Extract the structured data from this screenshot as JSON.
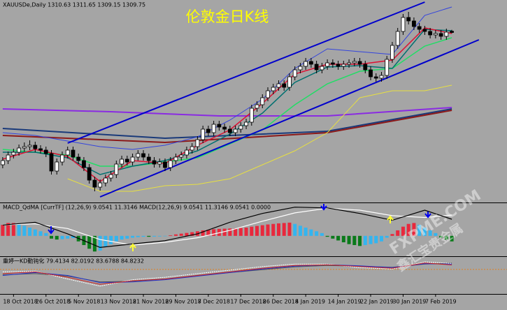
{
  "chart_data": {
    "type": "candlestick",
    "title": "伦敦金日K线",
    "header": "XAUUSDe,Daily  1310.63 1311.65 1309.15 1309.75",
    "watermark": [
      "FXPME.COM",
      "鑫汇宝贵金属"
    ],
    "xlim": [
      -0.5,
      93.2
    ],
    "xticks": [
      {
        "value": 2,
        "label": "18 Oct 2018"
      },
      {
        "value": 8,
        "label": "26 Oct 2018"
      },
      {
        "value": 14,
        "label": "5 Nov 2018"
      },
      {
        "value": 20,
        "label": "13 Nov 2018"
      },
      {
        "value": 26,
        "label": "21 Nov 2018"
      },
      {
        "value": 32,
        "label": "29 Nov 2018"
      },
      {
        "value": 38,
        "label": "7 Dec 2018"
      },
      {
        "value": 44,
        "label": "17 Dec 2018"
      },
      {
        "value": 50,
        "label": "26 Dec 2018"
      },
      {
        "value": 56,
        "label": "4 Jan 2019"
      },
      {
        "value": 62,
        "label": "14 Jan 2019"
      },
      {
        "value": 68,
        "label": "22 Jan 2019"
      },
      {
        "value": 74,
        "label": "30 Jan 2019"
      },
      {
        "value": 80,
        "label": "7 Feb 2019"
      }
    ],
    "ylim": [
      1188,
      1333
    ],
    "up_color": "#ffffff",
    "down_color": "#000000",
    "open": [
      1215,
      1218,
      1222,
      1224,
      1227,
      1228,
      1229,
      1226.5,
      1225.5,
      1223,
      1210.5,
      1217,
      1222,
      1225.5,
      1220.5,
      1218,
      1213,
      1204,
      1199,
      1202,
      1205.5,
      1208,
      1215.5,
      1219,
      1217,
      1220.5,
      1223,
      1220.5,
      1218,
      1215.5,
      1217,
      1213,
      1218,
      1220.5,
      1222,
      1225.5,
      1228,
      1233,
      1240.5,
      1238,
      1244,
      1242,
      1240.5,
      1238,
      1240.5,
      1243,
      1245.5,
      1255.5,
      1258,
      1263,
      1268,
      1270.5,
      1273,
      1270.5,
      1278,
      1283,
      1285.5,
      1289,
      1287,
      1283,
      1285.5,
      1288,
      1287,
      1285.5,
      1287,
      1288,
      1289,
      1287,
      1283,
      1278,
      1277,
      1279,
      1290.5,
      1300.5,
      1310.5,
      1320.5,
      1318,
      1314,
      1312,
      1310.5,
      1308,
      1309,
      1307,
      1310.63
    ],
    "high": [
      1220.5,
      1224.5,
      1226.5,
      1229.5,
      1231,
      1232.5,
      1231.5,
      1229,
      1228,
      1225.5,
      1219.5,
      1224.5,
      1228,
      1228,
      1223,
      1220.5,
      1215.5,
      1206.5,
      1204.5,
      1208,
      1210.5,
      1218,
      1221.5,
      1221.5,
      1223,
      1225.5,
      1225.5,
      1223,
      1220.5,
      1219.5,
      1219.5,
      1220.5,
      1223,
      1224.5,
      1228,
      1230.5,
      1235.5,
      1243,
      1243,
      1246.5,
      1246.5,
      1244.5,
      1243,
      1243,
      1245.5,
      1248,
      1258,
      1260.5,
      1265.5,
      1270.5,
      1273,
      1275.5,
      1275.5,
      1280.5,
      1285.5,
      1288,
      1291.5,
      1291.5,
      1289.5,
      1288,
      1290.5,
      1290.5,
      1289.5,
      1289.5,
      1290.5,
      1291.5,
      1291.5,
      1289.5,
      1285.5,
      1280.5,
      1281.5,
      1293,
      1303,
      1313,
      1323,
      1324.5,
      1320.5,
      1316.5,
      1314.5,
      1313,
      1311.5,
      1311.5,
      1312.5,
      1311.65
    ],
    "low": [
      1212.5,
      1215.5,
      1219.5,
      1221.5,
      1224.5,
      1225.5,
      1224,
      1223,
      1220.5,
      1208,
      1208,
      1214.5,
      1219.5,
      1218,
      1215.5,
      1210.5,
      1201.5,
      1196,
      1196.5,
      1199.5,
      1203,
      1205.5,
      1213,
      1214.5,
      1214.5,
      1218,
      1218,
      1215.5,
      1213,
      1213,
      1210.5,
      1210.5,
      1215.5,
      1218,
      1219.5,
      1223,
      1225.5,
      1230.5,
      1235.5,
      1235.5,
      1239.5,
      1238,
      1235.5,
      1235.5,
      1238,
      1240.5,
      1243,
      1253,
      1255.5,
      1260.5,
      1265.5,
      1268,
      1268,
      1268,
      1275.5,
      1280.5,
      1283,
      1284.5,
      1280.5,
      1280.5,
      1283,
      1284.5,
      1283,
      1283,
      1284.5,
      1285.5,
      1284.5,
      1280.5,
      1275.5,
      1274.5,
      1274.5,
      1276.5,
      1288,
      1298,
      1308,
      1315.5,
      1311.5,
      1309.5,
      1308,
      1305.5,
      1305.5,
      1304.5,
      1304.5,
      1309.15
    ],
    "close": [
      1218,
      1222,
      1224,
      1227,
      1228,
      1229,
      1226.5,
      1225.5,
      1223,
      1210.5,
      1217,
      1222,
      1225.5,
      1220.5,
      1218,
      1213,
      1204,
      1199,
      1202,
      1205.5,
      1208,
      1215.5,
      1219,
      1217,
      1220.5,
      1223,
      1220.5,
      1218,
      1215.5,
      1217,
      1213,
      1218,
      1220.5,
      1222,
      1225.5,
      1228,
      1233,
      1240.5,
      1238,
      1244,
      1242,
      1240.5,
      1238,
      1240.5,
      1243,
      1245.5,
      1255.5,
      1258,
      1263,
      1268,
      1270.5,
      1273,
      1270.5,
      1278,
      1283,
      1285.5,
      1289,
      1287,
      1283,
      1285.5,
      1288,
      1287,
      1285.5,
      1287,
      1288,
      1289,
      1287,
      1283,
      1278,
      1277,
      1279,
      1290.5,
      1300.5,
      1310.5,
      1320.5,
      1318,
      1314,
      1312,
      1310.5,
      1308,
      1309,
      1307,
      1310,
      1309.75
    ],
    "overlays": [
      {
        "color": "#8a2be2",
        "width": 2,
        "x": [
          0,
          20,
          40,
          60,
          83
        ],
        "values": [
          1255,
          1253,
          1250,
          1250,
          1256
        ]
      },
      {
        "color": "#1a3a7a",
        "width": 2,
        "x": [
          0,
          30,
          60,
          83
        ],
        "values": [
          1241,
          1234,
          1239,
          1255
        ]
      },
      {
        "color": "#8b1a1a",
        "width": 2,
        "x": [
          0,
          30,
          60,
          83
        ],
        "values": [
          1236,
          1231,
          1238,
          1254
        ]
      },
      {
        "color": "#3344dd",
        "width": 1,
        "x": [
          0,
          6,
          12,
          18,
          24,
          30,
          36,
          42,
          48,
          54,
          60,
          66,
          72,
          78,
          83
        ],
        "values": [
          1238,
          1236,
          1232,
          1228,
          1226,
          1229,
          1235,
          1247,
          1262,
          1284,
          1298,
          1296,
          1294,
          1322,
          1328
        ]
      },
      {
        "color": "#e8e040",
        "width": 1,
        "x": [
          12,
          18,
          24,
          30,
          36,
          42,
          48,
          54,
          60,
          66,
          72,
          78,
          83
        ],
        "values": [
          1205,
          1196,
          1196,
          1200,
          1201,
          1205,
          1215,
          1225,
          1238,
          1263,
          1268,
          1268,
          1272
        ]
      },
      {
        "color": "#22dd66",
        "width": 1.5,
        "x": [
          0,
          6,
          12,
          18,
          24,
          30,
          36,
          42,
          48,
          54,
          60,
          66,
          72,
          78,
          83
        ],
        "values": [
          1226,
          1224,
          1222,
          1214,
          1214,
          1217,
          1220,
          1230,
          1240,
          1258,
          1273,
          1282,
          1284,
          1300,
          1306
        ]
      },
      {
        "color": "#007070",
        "width": 1.5,
        "x": [
          0,
          6,
          12,
          18,
          24,
          30,
          36,
          42,
          48,
          54,
          60,
          66,
          72,
          78,
          83
        ],
        "values": [
          1224,
          1224,
          1220,
          1208,
          1214,
          1218,
          1225,
          1237,
          1252,
          1274,
          1285,
          1286,
          1284,
          1312,
          1311
        ]
      },
      {
        "color": "#dd1133",
        "width": 1.5,
        "x": [
          0,
          6,
          12,
          18,
          24,
          30,
          36,
          42,
          48,
          54,
          60,
          66,
          72,
          78,
          83
        ],
        "values": [
          1219,
          1226,
          1221,
          1203,
          1218,
          1216,
          1229,
          1240,
          1259,
          1280,
          1287,
          1287,
          1290,
          1313,
          1309
        ]
      }
    ],
    "channel_lines": [
      {
        "color": "#0000cc",
        "x": [
          12,
          78
        ],
        "values": [
          1230.5,
          1331.5
        ]
      },
      {
        "color": "#0000cc",
        "x": [
          18,
          88
        ],
        "values": [
          1192,
          1304.5
        ]
      }
    ],
    "macd": {
      "label": "MACD_QdMA [CurrTF] (12,26,9) 9.0541 11.3146  MACD(12,26,9) 9.0541 11.3146 9.0541 0.0000",
      "ylim": [
        -10.7,
        17.4
      ],
      "histogram": [
        6,
        7,
        7,
        6.5,
        5.5,
        4.5,
        3.5,
        2.5,
        1.5,
        -1.5,
        -2,
        -1.8,
        -1.5,
        -1.2,
        -3,
        -5,
        -7,
        -8.5,
        -8,
        -6,
        -4.5,
        -3,
        -2,
        -1.5,
        -1,
        -0.7,
        -0.5,
        -0.5,
        -0.4,
        -0.3,
        -0.2,
        0.3,
        0.8,
        1.2,
        1.6,
        2,
        2.5,
        3,
        3.3,
        3.6,
        3.8,
        3.9,
        4,
        4.1,
        4.3,
        4.5,
        5,
        5.4,
        5.8,
        6.2,
        6.5,
        6.8,
        7,
        7.2,
        6.5,
        5.5,
        4.5,
        3.5,
        2.5,
        1.5,
        -0.5,
        -1.5,
        -2.5,
        -3.5,
        -4.5,
        -5,
        -5.5,
        -5,
        -4.5,
        -4,
        -3,
        -1,
        1,
        3,
        5,
        6.5,
        7,
        6,
        4.5,
        3,
        1.5,
        -1,
        -2,
        -3
      ],
      "histogram_colors": {
        "rising_positive": "#e8283c",
        "falling_positive": "#33b5f0",
        "falling_negative": "#0a7a1a",
        "rising_negative": "#33b5f0"
      },
      "lines": [
        {
          "color": "#ffffff",
          "x": [
            0,
            6,
            12,
            18,
            24,
            30,
            36,
            42,
            48,
            54,
            60,
            66,
            72,
            78,
            83
          ],
          "values": [
            6,
            6.5,
            4,
            -2,
            -5,
            -3.5,
            -1,
            3,
            8,
            12.5,
            15,
            14,
            11,
            10,
            11.3146
          ]
        },
        {
          "color": "#000000",
          "x": [
            0,
            6,
            12,
            18,
            24,
            30,
            36,
            42,
            48,
            54,
            60,
            66,
            72,
            78,
            83
          ],
          "values": [
            5.9,
            7.4,
            1.1,
            -6.3,
            -4.4,
            -2.6,
            1.1,
            7.4,
            12.2,
            15.6,
            15.2,
            12.2,
            8.5,
            14,
            9.0541
          ]
        }
      ]
    },
    "kd": {
      "label": "重婷一KD勤钝化 79.4134 82.0192 83.6788 84.8232",
      "ylim": [
        0,
        100
      ],
      "level": 67,
      "level_color": "#e08020",
      "lines": [
        {
          "color": "#555555",
          "x": [
            0,
            6,
            12,
            18,
            24,
            30,
            36,
            42,
            48,
            54,
            60,
            66,
            72,
            78,
            83
          ],
          "values": [
            52,
            55,
            48,
            32,
            34,
            40,
            50,
            58,
            66,
            74,
            78,
            76,
            73,
            82,
            84.8232
          ]
        },
        {
          "color": "#ffffff",
          "x": [
            0,
            6,
            12,
            18,
            24,
            30,
            36,
            42,
            48,
            54,
            60,
            66,
            72,
            78,
            83
          ],
          "values": [
            60,
            62,
            40,
            20,
            38,
            45,
            55,
            65,
            75,
            82,
            82,
            72,
            68,
            88,
            83.6788
          ]
        },
        {
          "color": "#2233cc",
          "x": [
            0,
            6,
            12,
            18,
            24,
            30,
            36,
            42,
            48,
            54,
            60,
            66,
            72,
            78,
            83
          ],
          "values": [
            50,
            58,
            50,
            30,
            32,
            38,
            48,
            58,
            68,
            76,
            80,
            77,
            72,
            83,
            82.0192
          ]
        },
        {
          "color": "#cc2222",
          "x": [
            0,
            6,
            12,
            18,
            24,
            30,
            36,
            42,
            48,
            54,
            60,
            66,
            72,
            78,
            83
          ],
          "values": [
            55,
            60,
            45,
            25,
            35,
            40,
            50,
            60,
            70,
            78,
            80,
            75,
            70,
            85,
            79.4134
          ]
        }
      ]
    }
  }
}
